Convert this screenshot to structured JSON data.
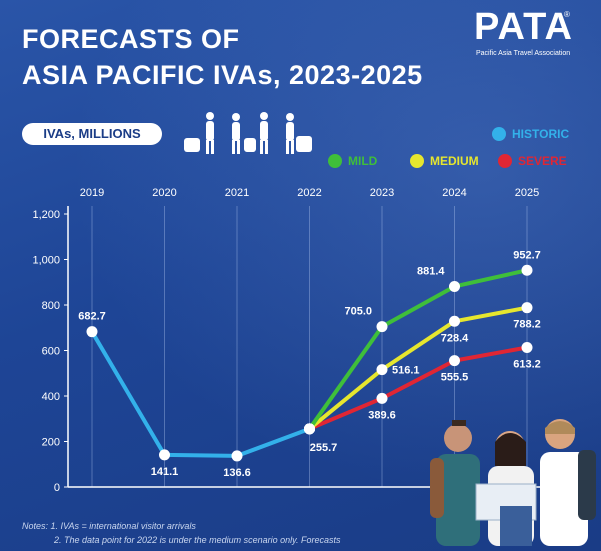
{
  "title": {
    "line1": "FORECASTS OF",
    "line2": "ASIA PACIFIC IVAs, 2023-2025"
  },
  "logo": {
    "text": "PATA",
    "registered": "®",
    "subtitle": "Pacific Asia Travel Association"
  },
  "unit_label": "IVAs, MILLIONS",
  "legend": {
    "historic": "HISTORIC",
    "mild": "MILD",
    "medium": "MEDIUM",
    "severe": "SEVERE"
  },
  "notes": {
    "line1": "Notes:  1. IVAs = international visitor arrivals",
    "line2": "2. The data point for 2022 is under the medium scenario only. Forecasts"
  },
  "colors": {
    "historic": "#33b1ea",
    "mild": "#3fbf3a",
    "medium": "#e6e62e",
    "severe": "#e02634",
    "background": "#1e4596"
  },
  "chart_data": {
    "type": "line",
    "x": [
      "2019",
      "2020",
      "2021",
      "2022",
      "2023",
      "2024",
      "2025"
    ],
    "ylim": [
      0,
      1200
    ],
    "yticks": [
      0,
      200,
      400,
      600,
      800,
      1000,
      1200
    ],
    "ytick_labels": [
      "0",
      "200",
      "400",
      "600",
      "800",
      "1,000",
      "1,200"
    ],
    "grid": "vertical",
    "legend_position": "top-right",
    "series": [
      {
        "name": "HISTORIC",
        "key": "historic",
        "color": "#33b1ea",
        "points": [
          [
            "2019",
            682.7
          ],
          [
            "2020",
            141.1
          ],
          [
            "2021",
            136.6
          ],
          [
            "2022",
            255.7
          ]
        ],
        "labels": [
          "682.7",
          "141.1",
          "136.6",
          "255.7"
        ],
        "label_positions": [
          "above",
          "below",
          "below",
          "below-right"
        ]
      },
      {
        "name": "MILD",
        "key": "mild",
        "color": "#3fbf3a",
        "points": [
          [
            "2022",
            255.7
          ],
          [
            "2023",
            705.0
          ],
          [
            "2024",
            881.4
          ],
          [
            "2025",
            952.7
          ]
        ],
        "labels": [
          "",
          "705.0",
          "881.4",
          "952.7"
        ],
        "label_positions": [
          "",
          "above-left",
          "above-left",
          "above"
        ]
      },
      {
        "name": "MEDIUM",
        "key": "medium",
        "color": "#e6e62e",
        "points": [
          [
            "2022",
            255.7
          ],
          [
            "2023",
            516.1
          ],
          [
            "2024",
            728.4
          ],
          [
            "2025",
            788.2
          ]
        ],
        "labels": [
          "",
          "516.1",
          "728.4",
          "788.2"
        ],
        "label_positions": [
          "",
          "right",
          "below",
          "below"
        ]
      },
      {
        "name": "SEVERE",
        "key": "severe",
        "color": "#e02634",
        "points": [
          [
            "2022",
            255.7
          ],
          [
            "2023",
            389.6
          ],
          [
            "2024",
            555.5
          ],
          [
            "2025",
            613.2
          ]
        ],
        "labels": [
          "",
          "389.6",
          "555.5",
          "613.2"
        ],
        "label_positions": [
          "",
          "below",
          "below",
          "below"
        ]
      }
    ]
  }
}
